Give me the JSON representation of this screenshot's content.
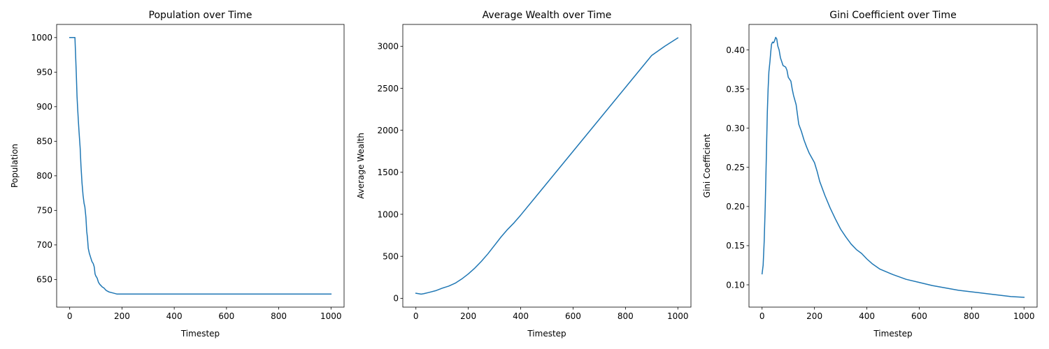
{
  "chart_data": [
    {
      "type": "line",
      "title": "Population over Time",
      "xlabel": "Timestep",
      "ylabel": "Population",
      "xlim": [
        -50,
        1050
      ],
      "ylim": [
        610,
        1019
      ],
      "xticks": [
        0,
        200,
        400,
        600,
        800,
        1000
      ],
      "yticks": [
        650,
        700,
        750,
        800,
        850,
        900,
        950,
        1000
      ],
      "grid": false,
      "series": [
        {
          "color": "#1f77b4",
          "points": [
            [
              0,
              1000
            ],
            [
              20,
              1000
            ],
            [
              22,
              980
            ],
            [
              25,
              950
            ],
            [
              28,
              915
            ],
            [
              30,
              900
            ],
            [
              33,
              880
            ],
            [
              36,
              862
            ],
            [
              40,
              840
            ],
            [
              43,
              815
            ],
            [
              47,
              790
            ],
            [
              51,
              772
            ],
            [
              55,
              760
            ],
            [
              58,
              755
            ],
            [
              62,
              740
            ],
            [
              65,
              720
            ],
            [
              68,
              710
            ],
            [
              71,
              695
            ],
            [
              75,
              688
            ],
            [
              80,
              682
            ],
            [
              85,
              676
            ],
            [
              90,
              673
            ],
            [
              94,
              668
            ],
            [
              97,
              658
            ],
            [
              100,
              655
            ],
            [
              105,
              652
            ],
            [
              110,
              646
            ],
            [
              115,
              643
            ],
            [
              120,
              641
            ],
            [
              125,
              639
            ],
            [
              130,
              638
            ],
            [
              135,
              636
            ],
            [
              140,
              634
            ],
            [
              145,
              633
            ],
            [
              150,
              632
            ],
            [
              160,
              631
            ],
            [
              170,
              630
            ],
            [
              180,
              629
            ],
            [
              200,
              629
            ],
            [
              400,
              629
            ],
            [
              600,
              629
            ],
            [
              800,
              629
            ],
            [
              1000,
              629
            ]
          ]
        }
      ]
    },
    {
      "type": "line",
      "title": "Average Wealth over Time",
      "xlabel": "Timestep",
      "ylabel": "Average Wealth",
      "xlim": [
        -50,
        1050
      ],
      "ylim": [
        -105,
        3260
      ],
      "xticks": [
        0,
        200,
        400,
        600,
        800,
        1000
      ],
      "yticks": [
        0,
        500,
        1000,
        1500,
        2000,
        2500,
        3000
      ],
      "grid": false,
      "series": [
        {
          "color": "#1f77b4",
          "points": [
            [
              0,
              60
            ],
            [
              10,
              55
            ],
            [
              20,
              50
            ],
            [
              30,
              55
            ],
            [
              50,
              70
            ],
            [
              75,
              90
            ],
            [
              100,
              120
            ],
            [
              125,
              145
            ],
            [
              150,
              180
            ],
            [
              175,
              230
            ],
            [
              200,
              290
            ],
            [
              225,
              360
            ],
            [
              250,
              440
            ],
            [
              275,
              530
            ],
            [
              300,
              630
            ],
            [
              325,
              730
            ],
            [
              350,
              820
            ],
            [
              375,
              900
            ],
            [
              400,
              990
            ],
            [
              450,
              1180
            ],
            [
              500,
              1370
            ],
            [
              550,
              1560
            ],
            [
              600,
              1750
            ],
            [
              650,
              1940
            ],
            [
              700,
              2130
            ],
            [
              750,
              2320
            ],
            [
              800,
              2510
            ],
            [
              850,
              2700
            ],
            [
              900,
              2890
            ],
            [
              950,
              3000
            ],
            [
              1000,
              3100
            ]
          ]
        }
      ]
    },
    {
      "type": "line",
      "title": "Gini Coefficient over Time",
      "xlabel": "Timestep",
      "ylabel": "Gini Coefficient",
      "xlim": [
        -50,
        1050
      ],
      "ylim": [
        0.0715,
        0.4325
      ],
      "xticks": [
        0,
        200,
        400,
        600,
        800,
        1000
      ],
      "yticks": [
        0.1,
        0.15,
        0.2,
        0.25,
        0.3,
        0.35,
        0.4
      ],
      "grid": false,
      "series": [
        {
          "color": "#1f77b4",
          "points": [
            [
              0,
              0.114
            ],
            [
              4,
              0.125
            ],
            [
              8,
              0.155
            ],
            [
              12,
              0.2
            ],
            [
              16,
              0.26
            ],
            [
              20,
              0.32
            ],
            [
              23,
              0.35
            ],
            [
              26,
              0.372
            ],
            [
              30,
              0.385
            ],
            [
              33,
              0.397
            ],
            [
              36,
              0.407
            ],
            [
              40,
              0.41
            ],
            [
              44,
              0.409
            ],
            [
              48,
              0.412
            ],
            [
              52,
              0.416
            ],
            [
              56,
              0.414
            ],
            [
              60,
              0.405
            ],
            [
              65,
              0.4
            ],
            [
              70,
              0.39
            ],
            [
              75,
              0.385
            ],
            [
              80,
              0.38
            ],
            [
              90,
              0.378
            ],
            [
              95,
              0.374
            ],
            [
              100,
              0.365
            ],
            [
              110,
              0.36
            ],
            [
              115,
              0.35
            ],
            [
              120,
              0.342
            ],
            [
              130,
              0.33
            ],
            [
              140,
              0.305
            ],
            [
              150,
              0.296
            ],
            [
              160,
              0.285
            ],
            [
              170,
              0.276
            ],
            [
              180,
              0.268
            ],
            [
              190,
              0.262
            ],
            [
              200,
              0.256
            ],
            [
              210,
              0.245
            ],
            [
              220,
              0.232
            ],
            [
              240,
              0.214
            ],
            [
              260,
              0.198
            ],
            [
              280,
              0.184
            ],
            [
              300,
              0.171
            ],
            [
              320,
              0.161
            ],
            [
              340,
              0.152
            ],
            [
              360,
              0.145
            ],
            [
              380,
              0.14
            ],
            [
              400,
              0.133
            ],
            [
              420,
              0.127
            ],
            [
              450,
              0.12
            ],
            [
              500,
              0.113
            ],
            [
              550,
              0.107
            ],
            [
              600,
              0.103
            ],
            [
              650,
              0.099
            ],
            [
              700,
              0.096
            ],
            [
              750,
              0.093
            ],
            [
              800,
              0.091
            ],
            [
              850,
              0.089
            ],
            [
              900,
              0.087
            ],
            [
              950,
              0.085
            ],
            [
              1000,
              0.084
            ]
          ]
        }
      ]
    }
  ]
}
